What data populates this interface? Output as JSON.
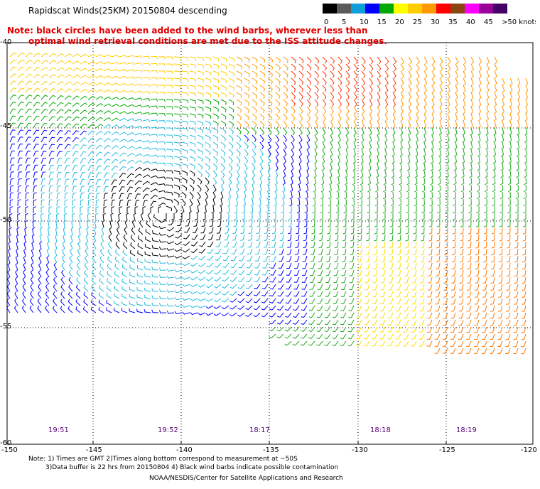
{
  "title": "Rapidscat Winds(25KM) 20150804 descending",
  "note_line1": "Note: black circles have been added to the wind barbs, wherever less than",
  "note_line2": "optimal wind retrieval conditions are met due to the ISS attitude changes.",
  "color_scale": {
    "labels": [
      "0",
      "5",
      "10",
      "15",
      "20",
      "25",
      "30",
      "35",
      "40",
      "45",
      ">50 knots"
    ],
    "colors": [
      "#000000",
      "#5a5a5a",
      "#0d9fd8",
      "#0000ff",
      "#00aa00",
      "#ffff00",
      "#ffcc00",
      "#ff9900",
      "#ff0000",
      "#8b4513",
      "#ff00ff",
      "#990099",
      "#440066"
    ]
  },
  "axes": {
    "lat_labels": [
      "-40",
      "-45",
      "-50",
      "-55",
      "-60"
    ],
    "lon_labels": [
      "-150",
      "-145",
      "-140",
      "-135",
      "-130",
      "-125",
      "-120"
    ]
  },
  "pass_times": [
    "19:51",
    "19:52",
    "18:17",
    "18:18",
    "18:19"
  ],
  "footer": {
    "line1": "Note: 1) Times are GMT 2)Times along bottom correspond to measurement at ~50S",
    "line2": "3)Data buffer is 22 hrs from 20150804 4) Black wind barbs indicate possible contamination",
    "line3": "NOAA/NESDIS/Center for Satellite Applications and Research"
  }
}
